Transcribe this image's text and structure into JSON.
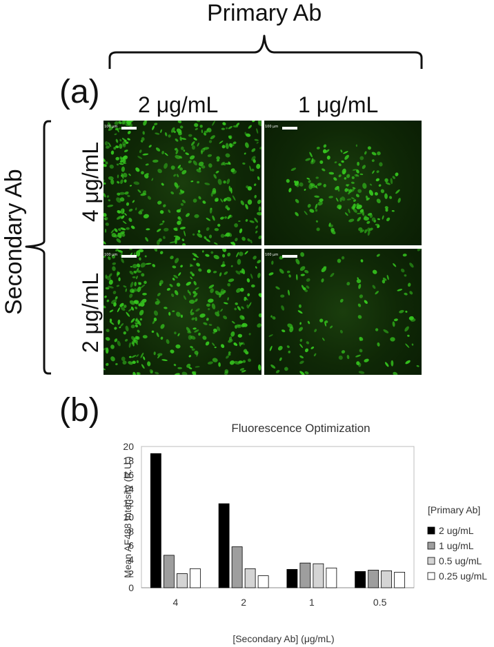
{
  "figure": {
    "header": "Primary Ab",
    "panel_a_label": "(a)",
    "panel_b_label": "(b)",
    "row_group_label": "Secondary Ab",
    "columns": [
      "2 μg/mL",
      "1 μg/mL"
    ],
    "rows": [
      "4 μg/mL",
      "2 μg/mL"
    ],
    "scale_bar_text": "100 μm"
  },
  "colors": {
    "cell_green": "#35c41e",
    "background": "#ffffff"
  },
  "chart_data": {
    "type": "bar",
    "title": "Fluorescence Optimization",
    "xlabel": "[Secondary Ab] (μg/mL)",
    "ylabel": "Mean AF488 Intensity (R.U.)",
    "ylim": [
      0,
      20
    ],
    "yticks": [
      0,
      2,
      4,
      6,
      8,
      10,
      12,
      14,
      16,
      18,
      20
    ],
    "categories": [
      "4",
      "2",
      "1",
      "0.5"
    ],
    "legend_title": "[Primary Ab]",
    "legend_position": "right",
    "grid": false,
    "series": [
      {
        "name": "2 ug/mL",
        "color": "#000000",
        "values": [
          19.0,
          11.9,
          2.6,
          2.3
        ]
      },
      {
        "name": "1 ug/mL",
        "color": "#9e9e9e",
        "values": [
          4.6,
          5.8,
          3.5,
          2.5
        ]
      },
      {
        "name": "0.5 ug/mL",
        "color": "#d4d4d4",
        "values": [
          2.0,
          2.7,
          3.4,
          2.4
        ]
      },
      {
        "name": "0.25 ug/mL",
        "color": "#ffffff",
        "values": [
          2.7,
          1.7,
          2.8,
          2.2
        ]
      }
    ]
  }
}
